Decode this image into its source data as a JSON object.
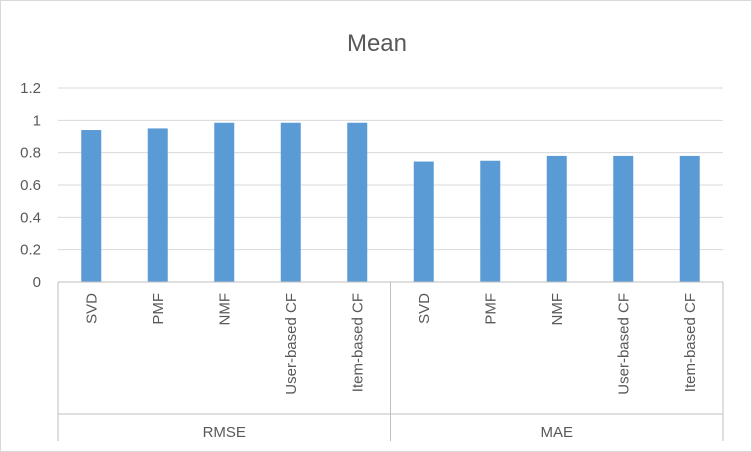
{
  "chart_data": {
    "type": "bar",
    "title": "Mean",
    "xlabel": "",
    "ylabel": "",
    "ylim": [
      0,
      1.2
    ],
    "yticks": [
      "0",
      "0.2",
      "0.4",
      "0.6",
      "0.8",
      "1",
      "1.2"
    ],
    "grid": true,
    "legend": "none",
    "bar_color": "#5b9bd5",
    "groups": [
      {
        "label": "RMSE",
        "categories": [
          "SVD",
          "PMF",
          "NMF",
          "User-based CF",
          "Item-based CF"
        ],
        "values": [
          0.94,
          0.95,
          0.985,
          0.985,
          0.985
        ]
      },
      {
        "label": "MAE",
        "categories": [
          "SVD",
          "PMF",
          "NMF",
          "User-based CF",
          "Item-based CF"
        ],
        "values": [
          0.745,
          0.75,
          0.78,
          0.78,
          0.78
        ]
      }
    ]
  }
}
